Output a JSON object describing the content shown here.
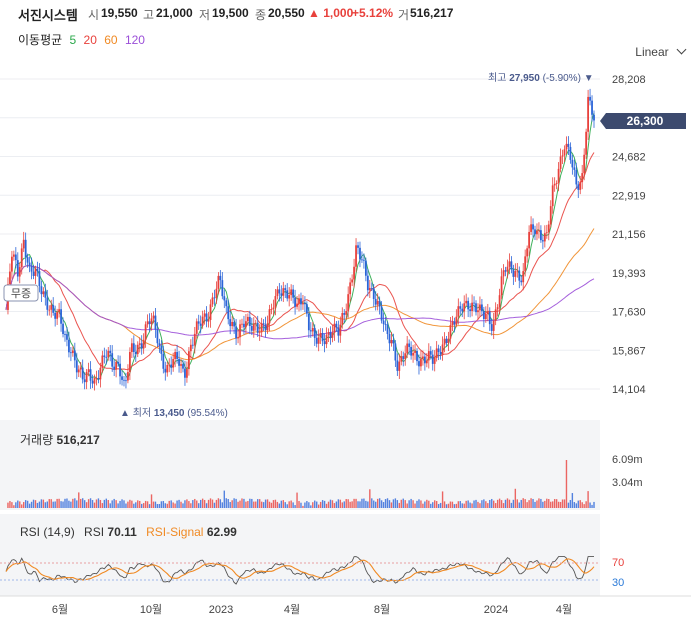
{
  "header": {
    "title": "서진시스템",
    "open_label": "시",
    "open": "19,550",
    "high_label": "고",
    "high": "21,000",
    "low_label": "저",
    "low": "19,500",
    "close_label": "종",
    "close": "20,550",
    "change": "▲ 1,000",
    "change_pct": "+5.12%",
    "volume_label": "거",
    "volume": "516,217"
  },
  "moving_average": {
    "label": "이동평균",
    "periods": [
      {
        "value": "5",
        "color": "#2aa84a"
      },
      {
        "value": "20",
        "color": "#e8413c"
      },
      {
        "value": "60",
        "color": "#f08a24"
      },
      {
        "value": "120",
        "color": "#9b4fd8"
      }
    ]
  },
  "scale_mode": "Linear",
  "chart_data": {
    "type": "candlestick",
    "price_axis": {
      "ticks": [
        "28,208",
        "26,445",
        "24,682",
        "22,919",
        "21,156",
        "19,393",
        "17,630",
        "15,867",
        "14,104"
      ],
      "tick_values": [
        28208,
        26445,
        24682,
        22919,
        21156,
        19393,
        17630,
        15867,
        14104
      ],
      "range": [
        13300,
        28500
      ]
    },
    "current_price": "26,300",
    "high_marker": {
      "label": "최고",
      "value": "27,950",
      "pct": "(-5.90%)"
    },
    "low_marker": {
      "label": "최저",
      "value": "13,450",
      "pct": "(95.54%)"
    },
    "ex_rights_label": "무증",
    "x_labels": [
      "6월",
      "10월",
      "2023",
      "4월",
      "8월",
      "2024",
      "4월"
    ],
    "price_series": [
      [
        0,
        17700
      ],
      [
        6,
        20200
      ],
      [
        12,
        19400
      ],
      [
        18,
        21000
      ],
      [
        24,
        19400
      ],
      [
        30,
        19300
      ],
      [
        36,
        18600
      ],
      [
        42,
        18100
      ],
      [
        48,
        17500
      ],
      [
        54,
        17300
      ],
      [
        60,
        16400
      ],
      [
        66,
        16000
      ],
      [
        72,
        15000
      ],
      [
        78,
        14400
      ],
      [
        84,
        14900
      ],
      [
        90,
        14500
      ],
      [
        96,
        15100
      ],
      [
        102,
        15700
      ],
      [
        108,
        15300
      ],
      [
        114,
        15300
      ],
      [
        120,
        14000
      ],
      [
        126,
        15800
      ],
      [
        132,
        16000
      ],
      [
        138,
        16400
      ],
      [
        144,
        17200
      ],
      [
        150,
        17000
      ],
      [
        156,
        15800
      ],
      [
        162,
        15000
      ],
      [
        168,
        15300
      ],
      [
        174,
        15400
      ],
      [
        180,
        14800
      ],
      [
        186,
        16000
      ],
      [
        192,
        16700
      ],
      [
        198,
        17200
      ],
      [
        204,
        17500
      ],
      [
        210,
        18500
      ],
      [
        216,
        19000
      ],
      [
        222,
        17600
      ],
      [
        228,
        17200
      ],
      [
        234,
        16600
      ],
      [
        240,
        17000
      ],
      [
        246,
        17000
      ],
      [
        252,
        17100
      ],
      [
        258,
        16900
      ],
      [
        264,
        16900
      ],
      [
        270,
        18000
      ],
      [
        276,
        18800
      ],
      [
        282,
        18500
      ],
      [
        288,
        18200
      ],
      [
        294,
        17900
      ],
      [
        300,
        18400
      ],
      [
        306,
        17000
      ],
      [
        312,
        16200
      ],
      [
        318,
        16400
      ],
      [
        324,
        16600
      ],
      [
        330,
        16800
      ],
      [
        336,
        16600
      ],
      [
        342,
        17600
      ],
      [
        348,
        19000
      ],
      [
        354,
        20500
      ],
      [
        360,
        19800
      ],
      [
        366,
        18800
      ],
      [
        372,
        18500
      ],
      [
        378,
        17600
      ],
      [
        384,
        16500
      ],
      [
        390,
        16300
      ],
      [
        396,
        15200
      ],
      [
        402,
        15700
      ],
      [
        408,
        15800
      ],
      [
        414,
        15600
      ],
      [
        420,
        15500
      ],
      [
        426,
        15500
      ],
      [
        432,
        15300
      ],
      [
        438,
        16000
      ],
      [
        444,
        16400
      ],
      [
        450,
        16800
      ],
      [
        456,
        17400
      ],
      [
        462,
        18100
      ],
      [
        468,
        18000
      ],
      [
        474,
        17700
      ],
      [
        480,
        17500
      ],
      [
        486,
        17600
      ],
      [
        492,
        17000
      ],
      [
        498,
        18200
      ],
      [
        504,
        19600
      ],
      [
        510,
        19800
      ],
      [
        516,
        19400
      ],
      [
        522,
        18900
      ],
      [
        528,
        21200
      ],
      [
        534,
        21600
      ],
      [
        540,
        21100
      ],
      [
        546,
        20800
      ],
      [
        552,
        23000
      ],
      [
        558,
        24200
      ],
      [
        564,
        25300
      ],
      [
        570,
        24600
      ],
      [
        576,
        23300
      ],
      [
        582,
        23800
      ],
      [
        588,
        27300
      ],
      [
        594,
        26300
      ]
    ],
    "volume_panel": {
      "label": "거래량",
      "value": "516,217",
      "ticks": [
        "6.09m",
        "3.04m"
      ],
      "tick_values": [
        6090000,
        3040000
      ]
    },
    "rsi_panel": {
      "label": "RSI (14,9)",
      "rsi_label": "RSI",
      "rsi_value": "70.11",
      "signal_label": "RSI-Signal",
      "signal_value": "62.99",
      "levels": [
        "70",
        "30"
      ],
      "level_values": [
        70,
        30
      ]
    }
  }
}
